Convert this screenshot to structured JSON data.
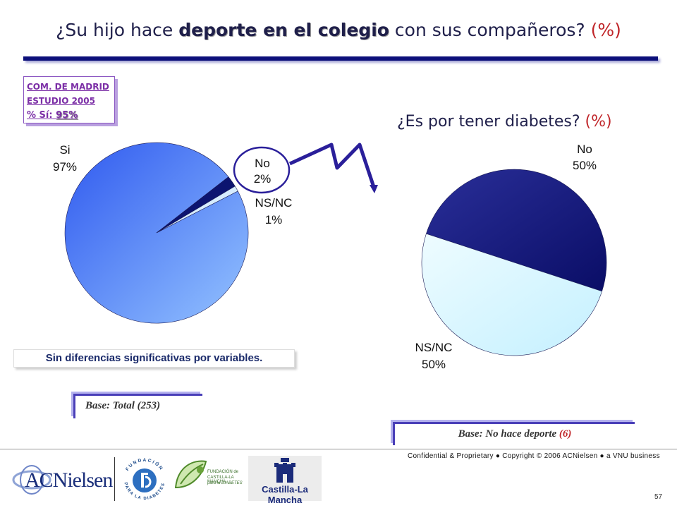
{
  "title": {
    "prefix": "¿Su hijo hace ",
    "bold": "deporte en el colegio",
    "suffix": " con sus compañeros?",
    "pct": "(%)"
  },
  "madrid_box": {
    "line1": "COM. DE MADRID",
    "line2": "ESTUDIO 2005",
    "label": "% Sí:",
    "value": "95%"
  },
  "subtitle": {
    "text": "¿Es por tener diabetes?",
    "pct": "(%)"
  },
  "note": "Sin diferencias significativas por variables.",
  "base_left": "Base: Total (253)",
  "base_right": {
    "text": "Base: No hace deporte",
    "num": "(6)"
  },
  "footer": {
    "confidential": "Confidential & Proprietary ● Copyright © 2006 ACNielsen ● a VNU business",
    "page_number": "57",
    "logo_acnielsen": "ACNielsen",
    "logo_fundacion": "FUNDACIÓN PARA LA DIABETES",
    "logo_fcm": [
      "FUNDACIÓN de",
      "CASTILLA-LA MANCHA",
      "para la DIABETES"
    ],
    "logo_clm": "Castilla-La Mancha"
  },
  "chart_data": [
    {
      "type": "pie",
      "title": "¿Su hijo hace deporte en el colegio con sus compañeros? (%)",
      "slices": [
        {
          "label": "Si",
          "value": 97,
          "text": "97%",
          "color": "#4a7cf5"
        },
        {
          "label": "No",
          "value": 2,
          "text": "2%",
          "color": "#0c1470"
        },
        {
          "label": "NS/NC",
          "value": 1,
          "text": "1%",
          "color": "#d6ecff"
        }
      ]
    },
    {
      "type": "pie",
      "title": "¿Es por tener diabetes? (%)",
      "slices": [
        {
          "label": "No",
          "value": 50,
          "text": "50%",
          "color": "#1a1f86"
        },
        {
          "label": "NS/NC",
          "value": 50,
          "text": "50%",
          "color": "#d4f6ff"
        }
      ]
    }
  ]
}
